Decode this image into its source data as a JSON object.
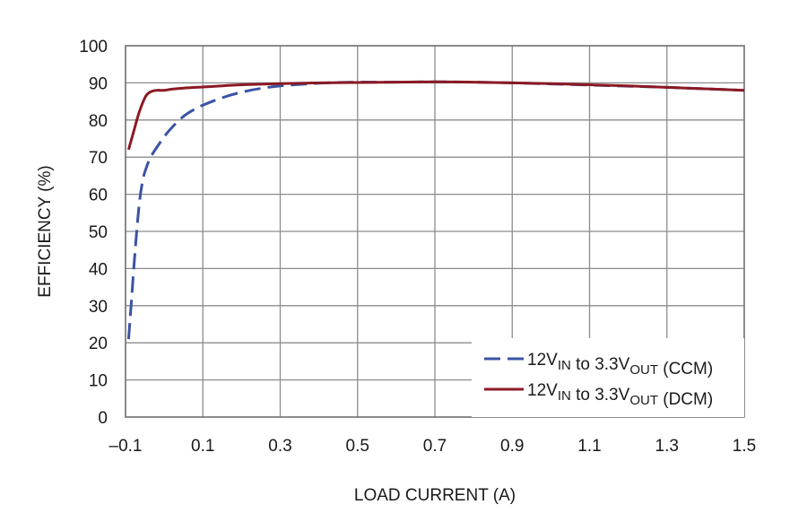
{
  "chart_data": {
    "type": "line",
    "title": "",
    "xlabel": "LOAD CURRENT (A)",
    "ylabel": "EFFICIENCY (%)",
    "xlim": [
      -0.1,
      1.5
    ],
    "ylim": [
      0,
      100
    ],
    "xticks": [
      "–0.1",
      "0.1",
      "0.3",
      "0.5",
      "0.7",
      "0.9",
      "1.1",
      "1.3",
      "1.5"
    ],
    "yticks": [
      "0",
      "10",
      "20",
      "30",
      "40",
      "50",
      "60",
      "70",
      "80",
      "90",
      "100"
    ],
    "grid": true,
    "legend_position": "bottom-right",
    "series": [
      {
        "name": "12VIN to 3.3VOUT (CCM)",
        "legend": {
          "p1": "12V",
          "s1": "IN",
          "p2": " to 3.3V",
          "s2": "OUT",
          "p3": " (CCM)"
        },
        "color": "#3b53a4",
        "dash": "dashed",
        "x": [
          -0.092,
          -0.085,
          -0.075,
          -0.065,
          -0.055,
          -0.045,
          -0.035,
          -0.02,
          0.0,
          0.02,
          0.05,
          0.08,
          0.1,
          0.15,
          0.2,
          0.25,
          0.3,
          0.35,
          0.4,
          0.45,
          0.5,
          0.55,
          0.6,
          0.7,
          0.8,
          0.9,
          1.0,
          1.1,
          1.2,
          1.3,
          1.4,
          1.5
        ],
        "y": [
          21,
          31,
          45,
          57,
          64,
          67.5,
          70,
          72.5,
          75.5,
          78,
          81,
          83,
          84,
          86,
          87.5,
          88.5,
          89.2,
          89.6,
          89.9,
          90.1,
          90.2,
          90.2,
          90.2,
          90.3,
          90.2,
          90,
          89.7,
          89.4,
          89.1,
          88.8,
          88.4,
          88
        ]
      },
      {
        "name": "12VIN to 3.3VOUT (DCM)",
        "legend": {
          "p1": "12V",
          "s1": "IN",
          "p2": " to 3.3V",
          "s2": "OUT",
          "p3": " (DCM)"
        },
        "color": "#8b1a24",
        "dash": "solid",
        "x": [
          -0.092,
          -0.08,
          -0.065,
          -0.05,
          -0.04,
          -0.03,
          -0.02,
          -0.01,
          0.0,
          0.02,
          0.05,
          0.1,
          0.15,
          0.2,
          0.3,
          0.4,
          0.5,
          0.6,
          0.7,
          0.8,
          0.9,
          1.0,
          1.1,
          1.2,
          1.3,
          1.4,
          1.5
        ],
        "y": [
          72,
          76.5,
          82,
          86,
          87.3,
          87.8,
          88,
          88,
          88,
          88.3,
          88.6,
          88.9,
          89.2,
          89.5,
          89.8,
          90,
          90.1,
          90.2,
          90.3,
          90.2,
          90,
          89.8,
          89.5,
          89.2,
          88.8,
          88.4,
          88
        ]
      }
    ]
  }
}
